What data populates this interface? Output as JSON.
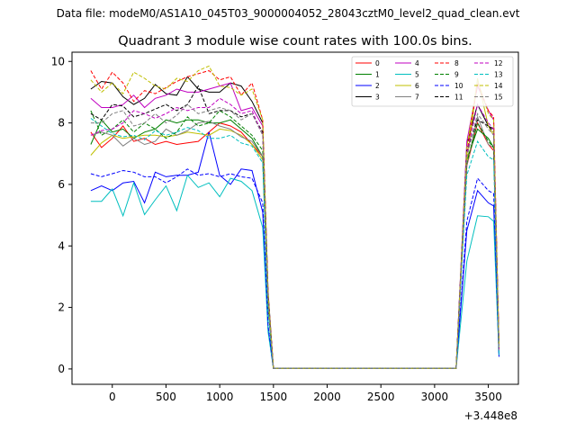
{
  "suptitle": "Data file: modeM0/AS1A10_045T03_9000004052_28043cztM0_level2_quad_clean.evt",
  "chart_data": {
    "type": "line",
    "title": "Quadrant 3 module wise count rates with 100.0s bins.",
    "xlabel": "",
    "ylabel": "",
    "offset_label": "+3.448e8",
    "xlim": [
      -375,
      3780
    ],
    "ylim": [
      -0.5,
      10.3
    ],
    "xticks": [
      0,
      500,
      1000,
      1500,
      2000,
      2500,
      3000,
      3500
    ],
    "xtick_labels": [
      "0",
      "500",
      "1000",
      "1500",
      "2000",
      "2500",
      "3000",
      "3500"
    ],
    "yticks": [
      0,
      2,
      4,
      6,
      8,
      10
    ],
    "ytick_labels": [
      "0",
      "2",
      "4",
      "6",
      "8",
      "10"
    ],
    "grid": false,
    "legend_placement": "upper-right",
    "x": [
      -200,
      -100,
      0,
      100,
      200,
      300,
      400,
      500,
      600,
      700,
      800,
      900,
      1000,
      1100,
      1200,
      1300,
      1400,
      1450,
      1500,
      1600,
      1700,
      1800,
      1900,
      2000,
      2100,
      2200,
      2300,
      2400,
      2500,
      2600,
      2700,
      2800,
      2900,
      3000,
      3100,
      3200,
      3300,
      3400,
      3500,
      3550,
      3600
    ],
    "series": [
      {
        "name": "0",
        "color": "#ff0000",
        "dash": false,
        "values": [
          7.7,
          7.2,
          7.5,
          7.9,
          7.4,
          7.5,
          7.3,
          7.4,
          7.3,
          7.35,
          7.4,
          7.7,
          8.0,
          7.9,
          7.7,
          7.3,
          6.9,
          2.0,
          0.02,
          0.02,
          0.02,
          0.02,
          0.02,
          0.02,
          0.02,
          0.02,
          0.02,
          0.02,
          0.02,
          0.02,
          0.02,
          0.02,
          0.02,
          0.02,
          0.02,
          0.02,
          6.6,
          8.0,
          7.3,
          7.1,
          0.6
        ]
      },
      {
        "name": "1",
        "color": "#008000",
        "dash": false,
        "values": [
          7.3,
          8.1,
          7.7,
          7.8,
          7.5,
          7.7,
          7.8,
          8.1,
          8.0,
          8.1,
          8.1,
          8.0,
          8.0,
          8.1,
          7.8,
          7.5,
          6.9,
          2.0,
          0.02,
          0.02,
          0.02,
          0.02,
          0.02,
          0.02,
          0.02,
          0.02,
          0.02,
          0.02,
          0.02,
          0.02,
          0.02,
          0.02,
          0.02,
          0.02,
          0.02,
          0.02,
          6.8,
          7.8,
          7.5,
          7.2,
          0.6
        ]
      },
      {
        "name": "2",
        "color": "#0000ff",
        "dash": false,
        "values": [
          5.8,
          5.95,
          5.8,
          6.05,
          6.1,
          5.4,
          6.4,
          6.25,
          6.3,
          6.3,
          6.4,
          7.7,
          6.3,
          6.0,
          6.5,
          6.45,
          5.1,
          1.3,
          0.02,
          0.02,
          0.02,
          0.02,
          0.02,
          0.02,
          0.02,
          0.02,
          0.02,
          0.02,
          0.02,
          0.02,
          0.02,
          0.02,
          0.02,
          0.02,
          0.02,
          0.02,
          4.5,
          5.8,
          5.4,
          5.3,
          0.4
        ]
      },
      {
        "name": "3",
        "color": "#000000",
        "dash": false,
        "values": [
          9.1,
          9.35,
          9.3,
          8.85,
          8.6,
          8.8,
          9.25,
          8.95,
          8.9,
          9.5,
          9.1,
          9.0,
          9.0,
          9.3,
          9.2,
          8.7,
          8.0,
          2.5,
          0.02,
          0.02,
          0.02,
          0.02,
          0.02,
          0.02,
          0.02,
          0.02,
          0.02,
          0.02,
          0.02,
          0.02,
          0.02,
          0.02,
          0.02,
          0.02,
          0.02,
          0.02,
          7.3,
          8.6,
          7.9,
          7.8,
          0.7
        ]
      },
      {
        "name": "4",
        "color": "#c000c0",
        "dash": false,
        "values": [
          8.8,
          8.5,
          8.5,
          8.6,
          8.9,
          8.5,
          8.8,
          8.9,
          9.1,
          9.0,
          9.0,
          9.1,
          9.2,
          9.3,
          8.4,
          8.5,
          7.9,
          2.4,
          0.02,
          0.02,
          0.02,
          0.02,
          0.02,
          0.02,
          0.02,
          0.02,
          0.02,
          0.02,
          0.02,
          0.02,
          0.02,
          0.02,
          0.02,
          0.02,
          0.02,
          0.02,
          7.4,
          9.2,
          8.4,
          8.1,
          0.7
        ]
      },
      {
        "name": "5",
        "color": "#00bfbf",
        "dash": false,
        "values": [
          5.45,
          5.45,
          5.85,
          4.98,
          6.05,
          5.02,
          5.5,
          5.95,
          5.15,
          6.3,
          5.9,
          6.05,
          5.6,
          6.2,
          6.1,
          5.8,
          4.6,
          1.2,
          0.02,
          0.02,
          0.02,
          0.02,
          0.02,
          0.02,
          0.02,
          0.02,
          0.02,
          0.02,
          0.02,
          0.02,
          0.02,
          0.02,
          0.02,
          0.02,
          0.02,
          0.02,
          3.5,
          4.98,
          4.95,
          4.8,
          0.4
        ]
      },
      {
        "name": "6",
        "color": "#bfbf00",
        "dash": false,
        "values": [
          6.95,
          7.35,
          7.6,
          7.5,
          7.55,
          7.6,
          7.6,
          7.55,
          7.6,
          7.7,
          7.65,
          7.6,
          7.8,
          7.75,
          7.6,
          7.3,
          6.8,
          2.0,
          0.02,
          0.02,
          0.02,
          0.02,
          0.02,
          0.02,
          0.02,
          0.02,
          0.02,
          0.02,
          0.02,
          0.02,
          0.02,
          0.02,
          0.02,
          0.02,
          0.02,
          0.02,
          6.7,
          9.45,
          7.9,
          7.6,
          0.6
        ]
      },
      {
        "name": "7",
        "color": "#808080",
        "dash": false,
        "values": [
          7.6,
          7.7,
          7.6,
          7.25,
          7.5,
          7.3,
          7.4,
          7.8,
          7.6,
          7.75,
          8.0,
          8.05,
          7.9,
          7.8,
          7.55,
          7.4,
          6.9,
          2.0,
          0.02,
          0.02,
          0.02,
          0.02,
          0.02,
          0.02,
          0.02,
          0.02,
          0.02,
          0.02,
          0.02,
          0.02,
          0.02,
          0.02,
          0.02,
          0.02,
          0.02,
          0.02,
          6.6,
          8.2,
          7.3,
          7.2,
          0.6
        ]
      },
      {
        "name": "8",
        "color": "#ff0000",
        "dash": true,
        "values": [
          9.7,
          9.1,
          9.65,
          9.3,
          8.7,
          9.05,
          8.95,
          9.15,
          9.35,
          9.5,
          9.6,
          9.7,
          9.4,
          9.5,
          8.9,
          9.3,
          8.1,
          2.4,
          0.02,
          0.02,
          0.02,
          0.02,
          0.02,
          0.02,
          0.02,
          0.02,
          0.02,
          0.02,
          0.02,
          0.02,
          0.02,
          0.02,
          0.02,
          0.02,
          0.02,
          0.02,
          7.0,
          9.3,
          8.4,
          8.2,
          0.7
        ]
      },
      {
        "name": "9",
        "color": "#008000",
        "dash": true,
        "values": [
          8.4,
          7.6,
          7.8,
          8.1,
          7.7,
          8.0,
          7.8,
          7.5,
          7.7,
          8.2,
          7.9,
          8.0,
          8.4,
          8.2,
          7.9,
          7.6,
          7.1,
          2.0,
          0.02,
          0.02,
          0.02,
          0.02,
          0.02,
          0.02,
          0.02,
          0.02,
          0.02,
          0.02,
          0.02,
          0.02,
          0.02,
          0.02,
          0.02,
          0.02,
          0.02,
          0.02,
          6.7,
          8.0,
          7.4,
          7.2,
          0.6
        ]
      },
      {
        "name": "10",
        "color": "#0000ff",
        "dash": true,
        "values": [
          6.35,
          6.25,
          6.35,
          6.45,
          6.4,
          6.25,
          6.25,
          6.05,
          6.25,
          6.5,
          6.3,
          6.35,
          6.25,
          6.35,
          6.25,
          6.2,
          5.4,
          1.4,
          0.02,
          0.02,
          0.02,
          0.02,
          0.02,
          0.02,
          0.02,
          0.02,
          0.02,
          0.02,
          0.02,
          0.02,
          0.02,
          0.02,
          0.02,
          0.02,
          0.02,
          0.02,
          4.8,
          6.2,
          5.8,
          5.7,
          0.4
        ]
      },
      {
        "name": "11",
        "color": "#000000",
        "dash": true,
        "values": [
          8.3,
          8.1,
          8.6,
          8.55,
          8.2,
          8.3,
          8.45,
          8.6,
          8.4,
          8.6,
          9.2,
          8.3,
          8.4,
          8.4,
          8.2,
          8.3,
          7.7,
          2.3,
          0.02,
          0.02,
          0.02,
          0.02,
          0.02,
          0.02,
          0.02,
          0.02,
          0.02,
          0.02,
          0.02,
          0.02,
          0.02,
          0.02,
          0.02,
          0.02,
          0.02,
          0.02,
          7.1,
          8.1,
          7.9,
          7.7,
          0.6
        ]
      },
      {
        "name": "12",
        "color": "#c000c0",
        "dash": true,
        "values": [
          7.6,
          7.75,
          7.8,
          8.0,
          8.4,
          8.3,
          8.15,
          8.3,
          8.5,
          8.4,
          8.5,
          8.5,
          8.8,
          8.6,
          8.3,
          8.4,
          7.6,
          2.2,
          0.02,
          0.02,
          0.02,
          0.02,
          0.02,
          0.02,
          0.02,
          0.02,
          0.02,
          0.02,
          0.02,
          0.02,
          0.02,
          0.02,
          0.02,
          0.02,
          0.02,
          0.02,
          7.0,
          8.6,
          8.0,
          7.8,
          0.6
        ]
      },
      {
        "name": "13",
        "color": "#00bfbf",
        "dash": true,
        "values": [
          8.15,
          7.9,
          7.65,
          7.55,
          7.6,
          7.45,
          7.75,
          7.6,
          7.7,
          7.85,
          7.75,
          7.5,
          7.5,
          7.6,
          7.35,
          7.25,
          6.7,
          1.9,
          0.02,
          0.02,
          0.02,
          0.02,
          0.02,
          0.02,
          0.02,
          0.02,
          0.02,
          0.02,
          0.02,
          0.02,
          0.02,
          0.02,
          0.02,
          0.02,
          0.02,
          0.02,
          6.3,
          7.4,
          6.9,
          6.8,
          0.5
        ]
      },
      {
        "name": "14",
        "color": "#bfbf00",
        "dash": true,
        "values": [
          9.4,
          9.0,
          9.3,
          8.95,
          9.65,
          9.45,
          9.2,
          9.1,
          9.45,
          9.35,
          9.7,
          9.85,
          9.2,
          9.15,
          8.9,
          9.1,
          8.1,
          2.4,
          0.02,
          0.02,
          0.02,
          0.02,
          0.02,
          0.02,
          0.02,
          0.02,
          0.02,
          0.02,
          0.02,
          0.02,
          0.02,
          0.02,
          0.02,
          0.02,
          0.02,
          0.02,
          7.2,
          9.4,
          8.3,
          8.1,
          0.7
        ]
      },
      {
        "name": "15",
        "color": "#808080",
        "dash": true,
        "values": [
          8.0,
          8.0,
          8.3,
          8.4,
          7.9,
          8.0,
          8.3,
          8.0,
          8.25,
          8.6,
          8.3,
          8.4,
          8.5,
          8.4,
          8.1,
          8.3,
          7.6,
          2.2,
          0.02,
          0.02,
          0.02,
          0.02,
          0.02,
          0.02,
          0.02,
          0.02,
          0.02,
          0.02,
          0.02,
          0.02,
          0.02,
          0.02,
          0.02,
          0.02,
          0.02,
          0.02,
          6.9,
          8.3,
          7.8,
          7.6,
          0.6
        ]
      }
    ]
  }
}
